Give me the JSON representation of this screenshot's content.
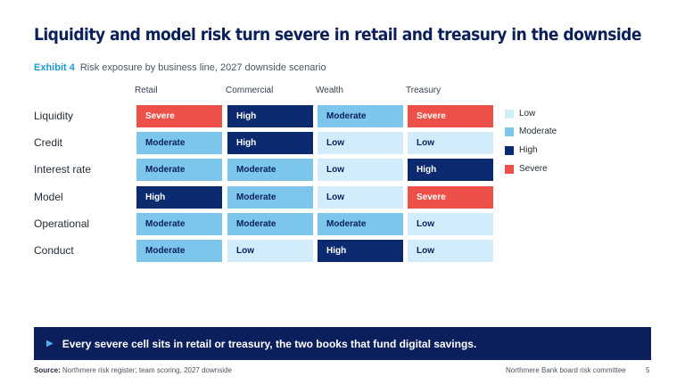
{
  "title": "Liquidity and model risk turn severe in retail and treasury in the downside",
  "exhibit": {
    "tag": "Exhibit 4",
    "caption": "Risk exposure by business line, 2027 downside scenario"
  },
  "colors": {
    "Low": "#d2ecfb",
    "Moderate": "#7cc6ec",
    "High": "#0b2a6f",
    "Severe": "#ec5048"
  },
  "chart_data": {
    "type": "heatmap",
    "title": "Risk exposure by business line, 2027 downside scenario",
    "columns": [
      "Retail",
      "Commercial",
      "Wealth",
      "Treasury"
    ],
    "rows": [
      "Liquidity",
      "Credit",
      "Interest rate",
      "Model",
      "Operational",
      "Conduct"
    ],
    "values": [
      [
        "Severe",
        "High",
        "Moderate",
        "Severe"
      ],
      [
        "Moderate",
        "High",
        "Low",
        "Low"
      ],
      [
        "Moderate",
        "Moderate",
        "Low",
        "High"
      ],
      [
        "High",
        "Moderate",
        "Low",
        "Severe"
      ],
      [
        "Moderate",
        "Moderate",
        "Moderate",
        "Low"
      ],
      [
        "Moderate",
        "Low",
        "High",
        "Low"
      ]
    ],
    "legend": [
      "Low",
      "Moderate",
      "High",
      "Severe"
    ],
    "legend_position": "right"
  },
  "callout": "Every severe cell sits in retail or treasury, the two books that fund digital savings.",
  "footer": {
    "source_label": "Source:",
    "source_text": "Northmere risk register; team scoring, 2027 downside",
    "org": "Northmere Bank board risk committee",
    "page": "5"
  }
}
